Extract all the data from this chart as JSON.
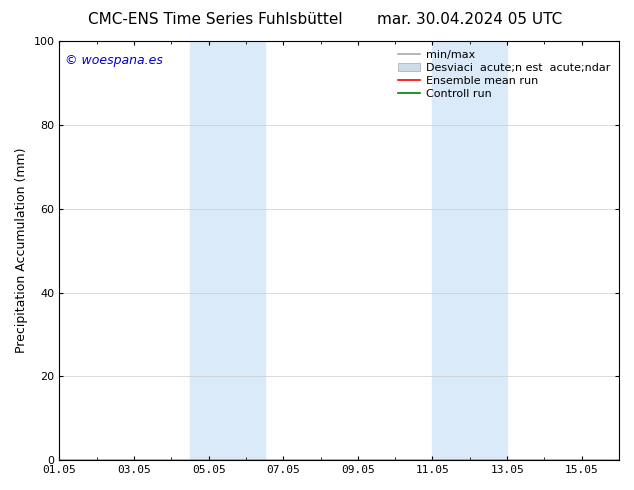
{
  "title_left": "CMC-ENS Time Series Fuhlsbüttel",
  "title_right": "mar. 30.04.2024 05 UTC",
  "ylabel": "Precipitation Accumulation (mm)",
  "watermark": "© woespana.es",
  "watermark_color": "#0000cc",
  "ylim": [
    0,
    100
  ],
  "yticks": [
    0,
    20,
    40,
    60,
    80,
    100
  ],
  "xtick_labels": [
    "01.05",
    "03.05",
    "05.05",
    "07.05",
    "09.05",
    "11.05",
    "13.05",
    "15.05"
  ],
  "xtick_positions": [
    0,
    2,
    4,
    6,
    8,
    10,
    12,
    14
  ],
  "xlim": [
    0,
    15
  ],
  "shaded_bands": [
    {
      "x_start": 3.5,
      "x_end": 5.5
    },
    {
      "x_start": 10.0,
      "x_end": 12.0
    }
  ],
  "shade_color": "#daeaf8",
  "legend_label_minmax": "min/max",
  "legend_label_std": "Desviaci  acute;n est  acute;ndar",
  "legend_label_ensemble": "Ensemble mean run",
  "legend_label_control": "Controll run",
  "color_minmax": "#aaaaaa",
  "color_std": "#ccdde8",
  "color_ensemble": "#ff0000",
  "color_control": "#008000",
  "bg_color": "#ffffff",
  "grid_color": "#cccccc",
  "tick_fontsize": 8,
  "label_fontsize": 9,
  "title_fontsize": 11,
  "legend_fontsize": 8
}
